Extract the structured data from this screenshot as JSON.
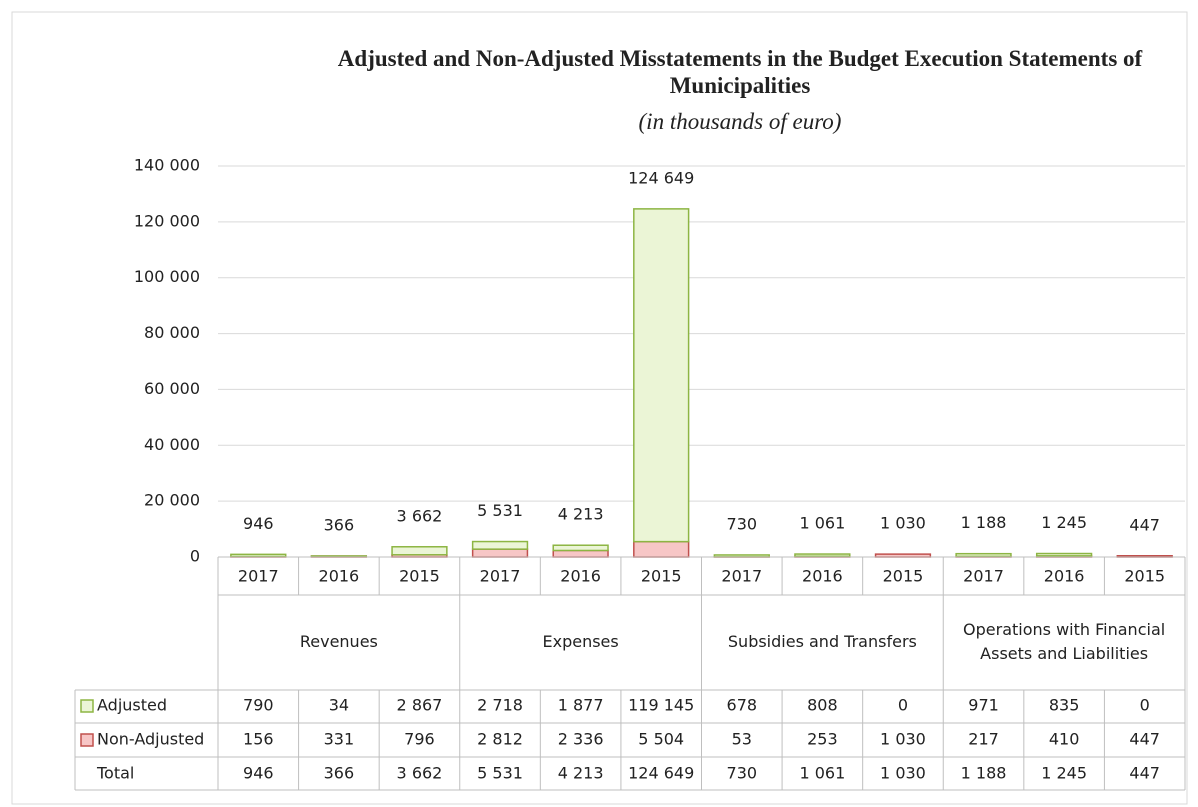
{
  "chart_data": {
    "type": "bar",
    "stacked": true,
    "title": "Adjusted and Non-Adjusted Misstatements in the Budget Execution Statements of Municipalities",
    "subtitle": "(in thousands of euro)",
    "groups": [
      {
        "name": "Revenues",
        "years": [
          "2017",
          "2016",
          "2015"
        ]
      },
      {
        "name": "Expenses",
        "years": [
          "2017",
          "2016",
          "2015"
        ]
      },
      {
        "name": "Subsidies and Transfers",
        "years": [
          "2017",
          "2016",
          "2015"
        ]
      },
      {
        "name": "Operations with Financial Assets and Liabilities",
        "years": [
          "2017",
          "2016",
          "2015"
        ]
      }
    ],
    "series": [
      {
        "name": "Adjusted",
        "color": "#ebf5d6",
        "stroke": "#8db543",
        "values": [
          790,
          34,
          2867,
          2718,
          1877,
          119145,
          678,
          808,
          0,
          971,
          835,
          0
        ],
        "value_labels": [
          "790",
          "34",
          "2 867",
          "2 718",
          "1 877",
          "119 145",
          "678",
          "808",
          "0",
          "971",
          "835",
          "0"
        ]
      },
      {
        "name": "Non-Adjusted",
        "color": "#f7c6c6",
        "stroke": "#c0504d",
        "values": [
          156,
          331,
          796,
          2812,
          2336,
          5504,
          53,
          253,
          1030,
          217,
          410,
          447
        ],
        "value_labels": [
          "156",
          "331",
          "796",
          "2 812",
          "2 336",
          "5 504",
          "53",
          "253",
          "1 030",
          "217",
          "410",
          "447"
        ]
      }
    ],
    "total": {
      "name": "Total",
      "values": [
        946,
        366,
        3662,
        5531,
        4213,
        124649,
        730,
        1061,
        1030,
        1188,
        1245,
        447
      ],
      "value_labels": [
        "946",
        "366",
        "3 662",
        "5 531",
        "4 213",
        "124 649",
        "730",
        "1 061",
        "1 030",
        "1 188",
        "1 245",
        "447"
      ]
    },
    "ylim": [
      0,
      140000
    ],
    "yticks": [
      0,
      {
        "value": 20000,
        "label": "20 000"
      },
      {
        "value": 40000,
        "label": "40 000"
      },
      {
        "value": 60000,
        "label": "60 000"
      },
      {
        "value": 80000,
        "label": "80 000"
      },
      {
        "value": 100000,
        "label": "100 000"
      },
      {
        "value": 120000,
        "label": "120 000"
      },
      {
        "value": 140000,
        "label": "140 000"
      }
    ],
    "grid": true
  }
}
